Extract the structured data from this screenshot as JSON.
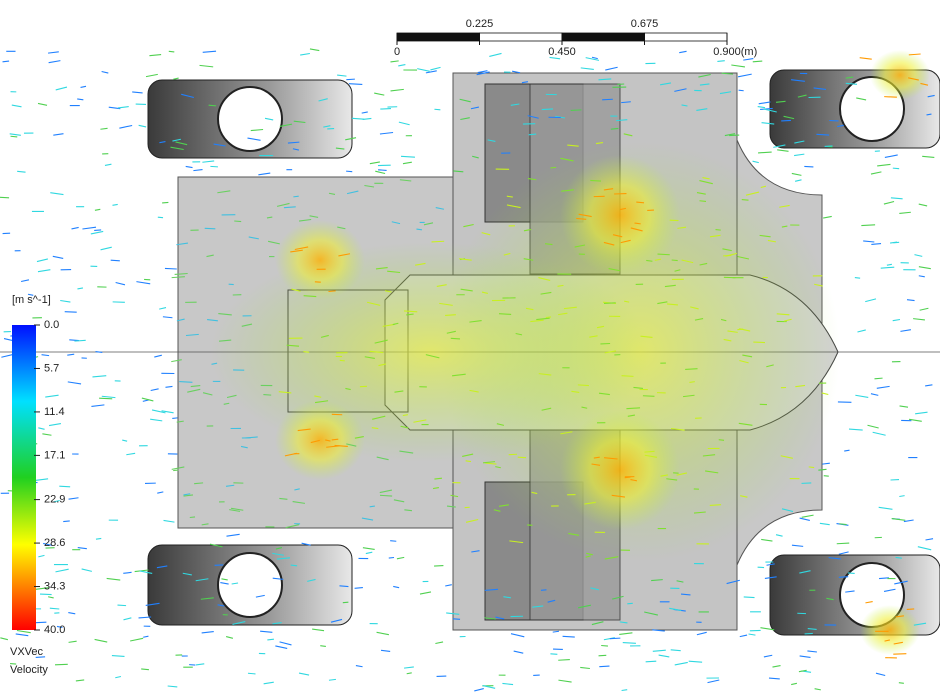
{
  "legend": {
    "title": "Velocity",
    "variable": "VXVec",
    "unit": "[m s^-1]",
    "ticks": [
      {
        "value": 0,
        "label": "0.0"
      },
      5.7,
      11.4,
      17.1,
      22.9,
      28.6,
      34.3,
      {
        "value": 40,
        "label": "40.0"
      }
    ]
  },
  "scale_bar": {
    "unit": "(m)",
    "ticks": [
      0,
      0.225,
      {
        "value": 0.45,
        "label": "0.450"
      },
      0.675,
      {
        "value": 0.9,
        "label": "0.900"
      }
    ]
  }
}
